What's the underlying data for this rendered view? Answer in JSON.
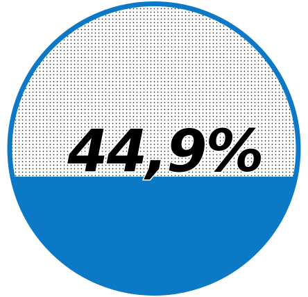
{
  "gauge": {
    "value_text": "44,9%",
    "fill_fraction": 0.449,
    "fill_color": "#0b79c6",
    "background_color": "#ffffff",
    "pattern_dot_color": "#2a2a2a",
    "text_color": "#000000"
  }
}
